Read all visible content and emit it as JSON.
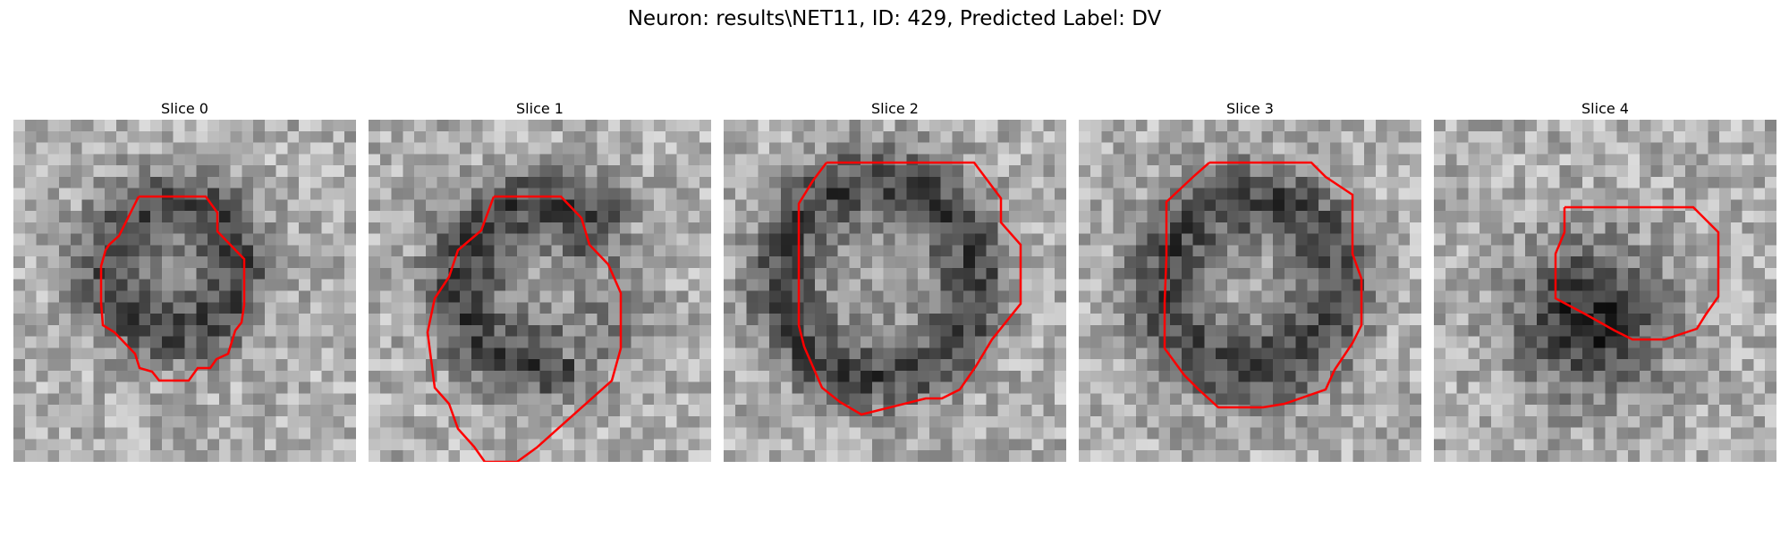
{
  "figure": {
    "title": "Neuron: results\\NET11, ID: 429, Predicted Label: DV",
    "contour_color": "#ff0000"
  },
  "panels": [
    {
      "title": "Slice 0",
      "darkness": "ring"
    },
    {
      "title": "Slice 1",
      "darkness": "ring"
    },
    {
      "title": "Slice 2",
      "darkness": "ring"
    },
    {
      "title": "Slice 3",
      "darkness": "ring"
    },
    {
      "title": "Slice 4",
      "darkness": "blob"
    }
  ]
}
